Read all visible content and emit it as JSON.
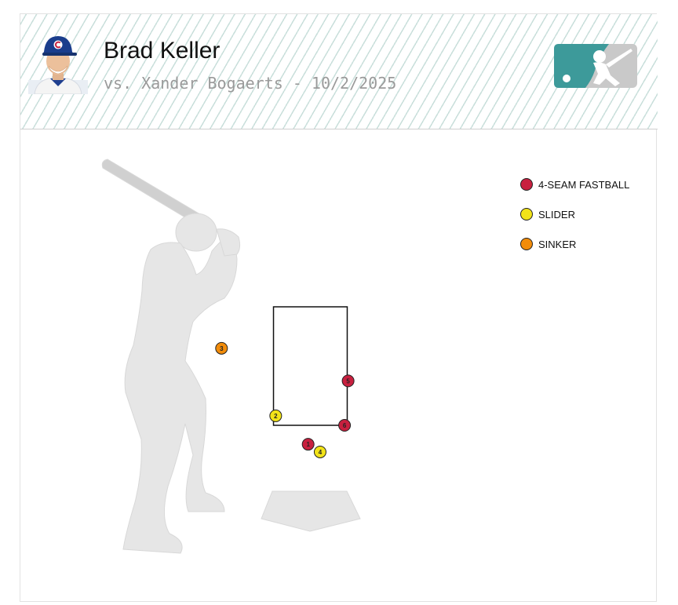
{
  "header": {
    "pitcher_name": "Brad Keller",
    "matchup": "vs. Xander Bogaerts - 10/2/2025"
  },
  "colors": {
    "4-Seam Fastball": "#c8203f",
    "Slider": "#f2e318",
    "Sinker": "#f28c0a",
    "accent": "#3d9a9a"
  },
  "icons": {
    "logo": "mlb-logo-icon",
    "batter": "batter-silhouette-icon",
    "plate": "home-plate-icon",
    "headshot": "pitcher-headshot-icon"
  },
  "chart_data": {
    "type": "scatter",
    "title": "",
    "xlabel": "",
    "ylabel": "",
    "grid": false,
    "legend_position": "top-right",
    "strike_zone": {
      "x": [
        -0.83,
        0.83
      ],
      "y": [
        1.5,
        3.5
      ]
    },
    "legend": [
      {
        "label": "4-SEAM FASTBALL",
        "pitch_type": "4-Seam Fastball"
      },
      {
        "label": "SLIDER",
        "pitch_type": "Slider"
      },
      {
        "label": "SINKER",
        "pitch_type": "Sinker"
      }
    ],
    "pitches": [
      {
        "number": "1",
        "pitch_type": "4-Seam Fastball",
        "x": -0.05,
        "y": 1.18
      },
      {
        "number": "2",
        "pitch_type": "Slider",
        "x": -0.78,
        "y": 1.66
      },
      {
        "number": "3",
        "pitch_type": "Sinker",
        "x": -2.0,
        "y": 2.8
      },
      {
        "number": "4",
        "pitch_type": "Slider",
        "x": 0.22,
        "y": 1.05
      },
      {
        "number": "5",
        "pitch_type": "4-Seam Fastball",
        "x": 0.85,
        "y": 2.25
      },
      {
        "number": "6",
        "pitch_type": "4-Seam Fastball",
        "x": 0.77,
        "y": 1.5
      }
    ]
  }
}
